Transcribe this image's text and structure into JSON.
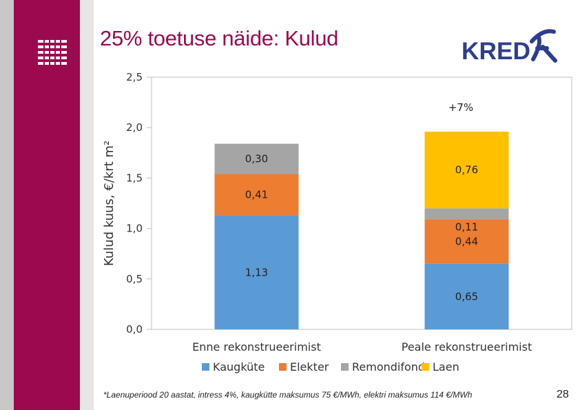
{
  "slide": {
    "title": "25% toetuse näide: Kulud",
    "footnote": "*Laenuperiood 20 aastat, intress 4%, kaugkütte maksumus 75 €/MWh, elektri maksumus 114 €/MWh",
    "page_number": "28",
    "brand": "KREDEX",
    "brand_color": "#2d3e8f",
    "accent_color": "#9b0a4e"
  },
  "chart_data": {
    "type": "bar",
    "stacked": true,
    "categories": [
      "Enne rekonstrueerimist",
      "Peale rekonstrueerimist"
    ],
    "series": [
      {
        "name": "Kaugküte",
        "color": "#5b9bd5",
        "values": [
          1.13,
          0.65
        ],
        "labels": [
          "1,13",
          "0,65"
        ]
      },
      {
        "name": "Elekter",
        "color": "#ed7d31",
        "values": [
          0.41,
          0.44
        ],
        "labels": [
          "0,41",
          "0,44"
        ]
      },
      {
        "name": "Remondifond",
        "color": "#a5a5a5",
        "values": [
          0.3,
          0.11
        ],
        "labels": [
          "0,30",
          "0,11"
        ]
      },
      {
        "name": "Laen",
        "color": "#ffc000",
        "values": [
          0,
          0.76
        ],
        "labels": [
          "",
          "0,76"
        ]
      }
    ],
    "ylabel": "Kulud kuus, €/krt m²",
    "ylim": [
      0,
      2.5
    ],
    "yticks": [
      0,
      0.5,
      1.0,
      1.5,
      2.0,
      2.5
    ],
    "ytick_labels": [
      "0,0",
      "0,5",
      "1,0",
      "1,5",
      "2,0",
      "2,5"
    ],
    "annotation": "+7%",
    "legend_position": "bottom",
    "grid": false
  }
}
